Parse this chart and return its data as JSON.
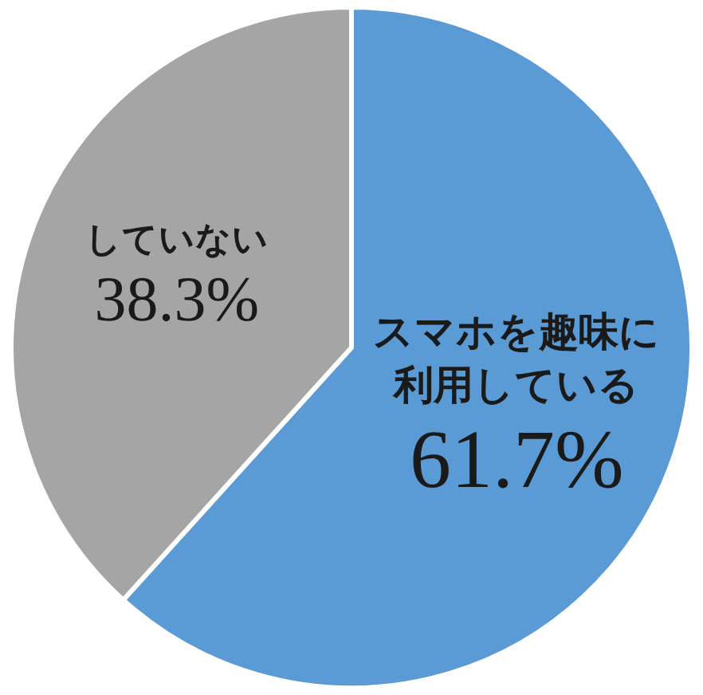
{
  "chart_data": {
    "type": "pie",
    "categories": [
      "スマホを趣味に利用している",
      "していない"
    ],
    "values": [
      61.7,
      38.3
    ],
    "colors": [
      "#5b9bd5",
      "#a5a5a5"
    ],
    "value_labels": [
      "61.7%",
      "38.3%"
    ],
    "legend": false
  }
}
